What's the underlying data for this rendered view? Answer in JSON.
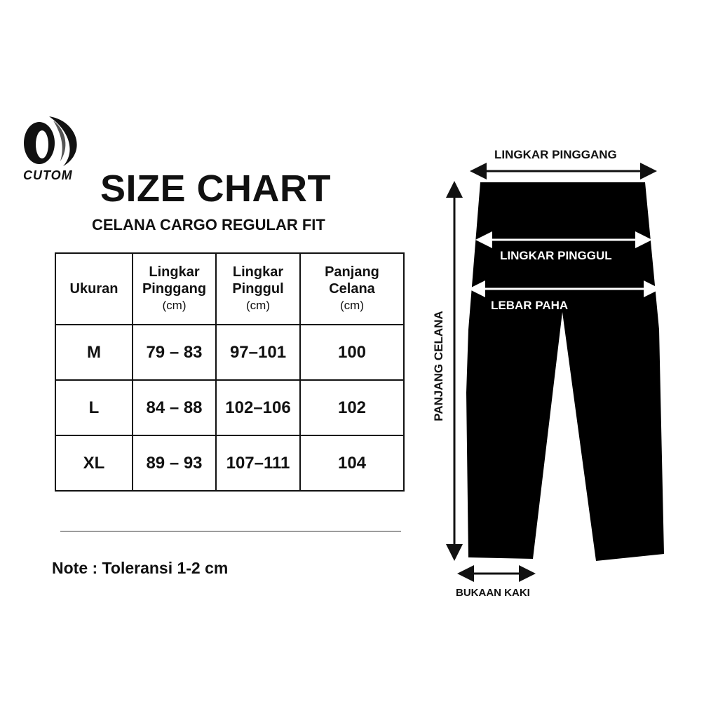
{
  "brand": {
    "logo_text": "CUTOM"
  },
  "title": "SIZE CHART",
  "subtitle": "CELANA CARGO REGULAR FIT",
  "table": {
    "headers": [
      {
        "line1": "Ukuran",
        "line2": "",
        "unit": ""
      },
      {
        "line1": "Lingkar",
        "line2": "Pinggang",
        "unit": "(cm)"
      },
      {
        "line1": "Lingkar",
        "line2": "Pinggul",
        "unit": "(cm)"
      },
      {
        "line1": "Panjang",
        "line2": "Celana",
        "unit": "(cm)"
      }
    ],
    "rows": [
      [
        "M",
        "79 – 83",
        "97–101",
        "100"
      ],
      [
        "L",
        "84 – 88",
        "102–106",
        "102"
      ],
      [
        "XL",
        "89 – 93",
        "107–111",
        "104"
      ]
    ]
  },
  "note": "Note : Toleransi 1-2 cm",
  "diagram": {
    "waist": "LINGKAR PINGGANG",
    "hip": "LINGKAR PINGGUL",
    "thigh": "LEBAR PAHA",
    "length": "PANJANG CELANA",
    "leg_opening": "BUKAAN KAKI"
  }
}
